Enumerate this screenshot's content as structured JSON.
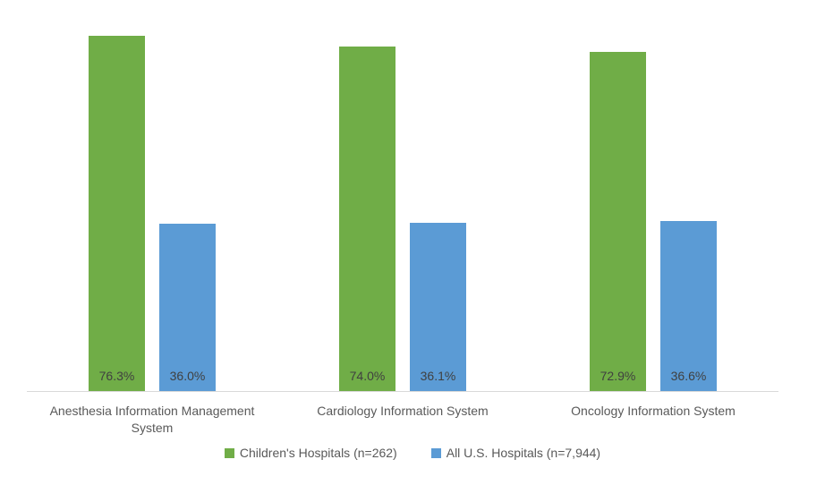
{
  "chart_data": {
    "type": "bar",
    "title": "",
    "xlabel": "",
    "ylabel": "",
    "categories": [
      "Anesthesia Information Management System",
      "Cardiology Information System",
      "Oncology Information System"
    ],
    "series": [
      {
        "name": "Children's Hospitals (n=262)",
        "color": "#70AD47",
        "values": [
          76.3,
          74.0,
          72.9
        ]
      },
      {
        "name": "All U.S. Hospitals (n=7,944)",
        "color": "#5B9BD5",
        "values": [
          36.0,
          36.1,
          36.6
        ]
      }
    ],
    "value_labels": [
      [
        "76.3%",
        "74.0%",
        "72.9%"
      ],
      [
        "36.0%",
        "36.1%",
        "36.6%"
      ]
    ],
    "ylim": [
      0,
      80
    ],
    "grid": false,
    "y_axis_visible": false,
    "legend_position": "bottom",
    "axis_line_color": "#D9D9D9",
    "value_label_color": "#404040",
    "axis_text_color": "#595959"
  }
}
